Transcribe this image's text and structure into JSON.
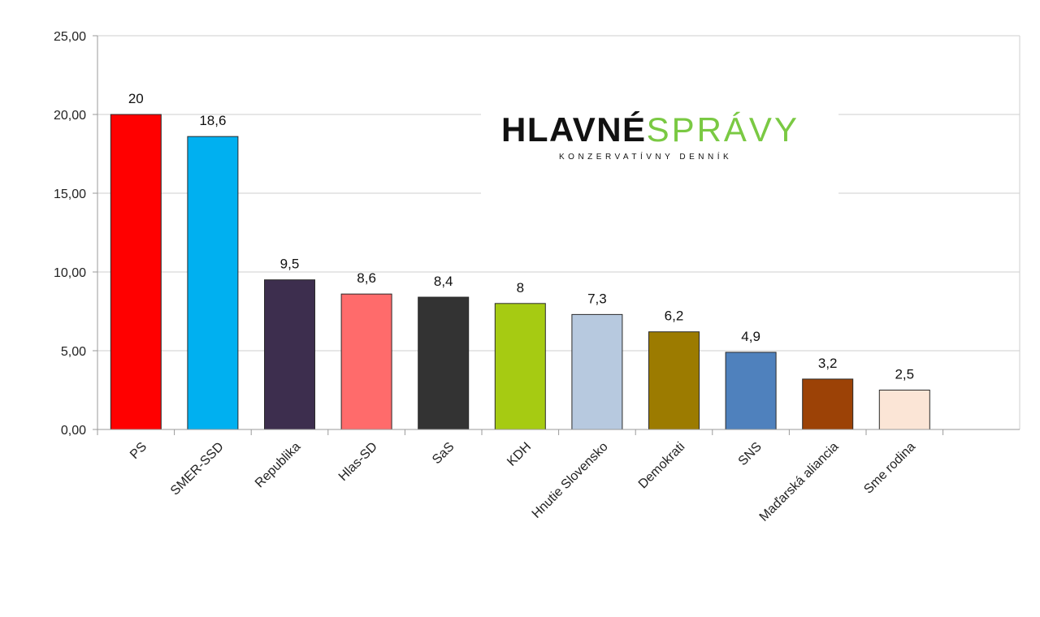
{
  "chart_data": {
    "type": "bar",
    "title": "",
    "xlabel": "",
    "ylabel": "",
    "ylim": [
      0,
      25
    ],
    "yticks": [
      "0,00",
      "5,00",
      "10,00",
      "15,00",
      "20,00",
      "25,00"
    ],
    "grid": true,
    "legend": "none",
    "categories": [
      "PS",
      "SMER-SSD",
      "Republika",
      "Hlas-SD",
      "SaS",
      "KDH",
      "Hnutie Slovensko",
      "Demokrati",
      "SNS",
      "Maďarská aliancia",
      "Sme rodina"
    ],
    "values": [
      20,
      18.6,
      9.5,
      8.6,
      8.4,
      8,
      7.3,
      6.2,
      4.9,
      3.2,
      2.5
    ],
    "value_labels": [
      "20",
      "18,6",
      "9,5",
      "8,6",
      "8,4",
      "8",
      "7,3",
      "6,2",
      "4,9",
      "3,2",
      "2,5"
    ],
    "colors": [
      "#ff0000",
      "#00b0f0",
      "#3d2e4e",
      "#ff6b6b",
      "#333333",
      "#a6cb12",
      "#b7c9df",
      "#9c7b00",
      "#4f81bd",
      "#9c4206",
      "#fbe5d6"
    ]
  },
  "logo": {
    "word1": "HLAVNÉ",
    "word2": "SPRÁVY",
    "subtitle": "KONZERVATÍVNY DENNÍK"
  }
}
